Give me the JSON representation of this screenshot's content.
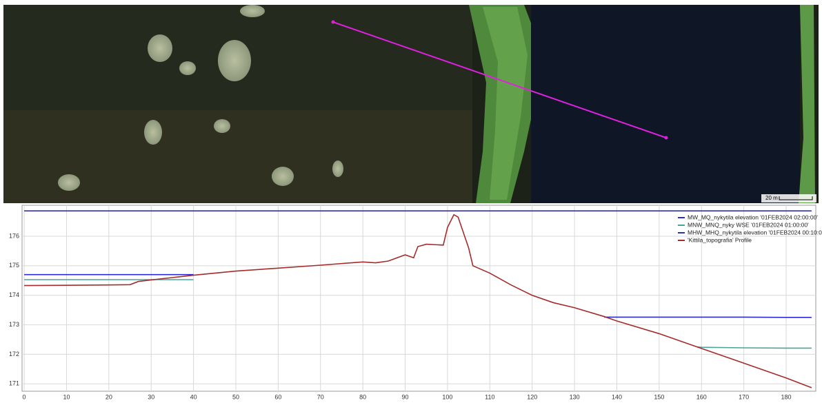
{
  "map": {
    "scale_label": "20 m"
  },
  "chart_data": {
    "type": "line",
    "x": [
      0,
      10,
      20,
      25,
      27,
      30,
      35,
      40,
      50,
      60,
      70,
      80,
      83,
      86,
      90,
      92,
      93,
      95,
      99,
      100,
      101.5,
      102.5,
      105,
      106,
      110,
      115,
      120,
      125,
      130,
      137,
      140,
      150,
      159,
      160,
      170,
      180,
      186
    ],
    "series": [
      {
        "name": "MW_MQ_nykytila elevation '01FEB2024 02:00:00'",
        "color": "#2b2bd6",
        "values": [
          174.7,
          174.7,
          174.7,
          174.7,
          174.7,
          174.7,
          174.7,
          174.7,
          null,
          null,
          null,
          null,
          null,
          null,
          null,
          null,
          null,
          null,
          null,
          null,
          null,
          null,
          null,
          null,
          null,
          null,
          null,
          null,
          null,
          173.26,
          173.26,
          173.26,
          173.26,
          173.26,
          173.26,
          173.25,
          173.25
        ]
      },
      {
        "name": "MNW_MNQ_nyky WSE '01FEB2024 01:00:00'",
        "color": "#4aa39a",
        "values": [
          174.53,
          174.53,
          174.53,
          174.53,
          174.53,
          174.53,
          174.53,
          174.53,
          null,
          null,
          null,
          null,
          null,
          null,
          null,
          null,
          null,
          null,
          null,
          null,
          null,
          null,
          null,
          null,
          null,
          null,
          null,
          null,
          null,
          null,
          null,
          null,
          172.25,
          172.24,
          172.22,
          172.21,
          172.21
        ]
      },
      {
        "name": "MHW_MHQ_nykytila elevation '01FEB2024 00:10:00'",
        "color": "#30309a",
        "values": [
          176.86,
          176.86,
          176.86,
          176.86,
          176.86,
          176.86,
          176.86,
          176.86,
          176.86,
          176.86,
          176.86,
          176.86,
          176.86,
          176.86,
          176.86,
          176.86,
          176.86,
          176.86,
          176.86,
          176.86,
          176.86,
          176.86,
          176.86,
          176.86,
          176.86,
          176.86,
          176.86,
          176.86,
          176.86,
          176.86,
          176.86,
          176.86,
          176.86,
          176.86,
          176.86,
          176.86,
          176.86
        ]
      },
      {
        "name": "'Kittila_topografia' Profile",
        "color": "#a52a2a",
        "values": [
          174.33,
          174.34,
          174.35,
          174.36,
          174.47,
          174.52,
          174.6,
          174.68,
          174.82,
          174.92,
          175.02,
          175.13,
          175.1,
          175.16,
          175.37,
          175.27,
          175.65,
          175.73,
          175.7,
          176.3,
          176.73,
          176.65,
          175.6,
          175.0,
          174.75,
          174.35,
          174.0,
          173.75,
          173.58,
          173.28,
          173.13,
          172.7,
          172.25,
          172.2,
          171.7,
          171.2,
          170.87
        ]
      }
    ],
    "xlim": [
      -0.5,
      187
    ],
    "xticks": [
      0,
      10,
      20,
      30,
      40,
      50,
      60,
      70,
      80,
      90,
      100,
      110,
      120,
      130,
      140,
      150,
      160,
      170,
      180
    ],
    "ylim": [
      170.75,
      177.05
    ],
    "yticks": [
      171,
      172,
      173,
      174,
      175,
      176
    ],
    "grid": true,
    "legend": "top-right"
  }
}
